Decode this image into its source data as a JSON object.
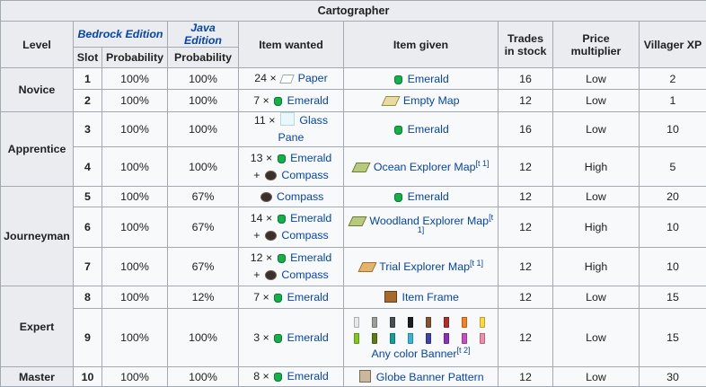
{
  "title": "Cartographer",
  "headers": {
    "level": "Level",
    "bedrock": "Bedrock Edition",
    "java": "Java Edition",
    "slot": "Slot",
    "probability_bedrock": "Probability",
    "probability_java": "Probability",
    "item_wanted": "Item wanted",
    "item_given": "Item given",
    "trades_in_stock": "Trades in stock",
    "price_multiplier": "Price multiplier",
    "villager_xp": "Villager XP"
  },
  "levels": {
    "novice": "Novice",
    "apprentice": "Apprentice",
    "journeyman": "Journeyman",
    "expert": "Expert",
    "master": "Master"
  },
  "rows": [
    {
      "slot": "1",
      "pb": "100%",
      "pj": "100%",
      "wanted": [
        {
          "qty": "24 ×",
          "icon": "paper-icon",
          "item": "Paper"
        }
      ],
      "given": {
        "icon": "emerald-icon",
        "item": "Emerald",
        "note": ""
      },
      "stock": "16",
      "mult": "Low",
      "xp": "2"
    },
    {
      "slot": "2",
      "pb": "100%",
      "pj": "100%",
      "wanted": [
        {
          "qty": "7 ×",
          "icon": "emerald-icon",
          "item": "Emerald"
        }
      ],
      "given": {
        "icon": "empty-map-icon",
        "item": "Empty Map",
        "note": ""
      },
      "stock": "12",
      "mult": "Low",
      "xp": "1"
    },
    {
      "slot": "3",
      "pb": "100%",
      "pj": "100%",
      "wanted": [
        {
          "qty": "11 ×",
          "icon": "glass-pane-icon",
          "item": "Glass Pane"
        }
      ],
      "given": {
        "icon": "emerald-icon",
        "item": "Emerald",
        "note": ""
      },
      "stock": "16",
      "mult": "Low",
      "xp": "10"
    },
    {
      "slot": "4",
      "pb": "100%",
      "pj": "100%",
      "wanted": [
        {
          "qty": "13 ×",
          "icon": "emerald-icon",
          "item": "Emerald"
        },
        {
          "qty": "+",
          "icon": "compass-icon",
          "item": "Compass"
        }
      ],
      "given": {
        "icon": "ocean-map-icon",
        "item": "Ocean Explorer Map",
        "note": "[t 1]"
      },
      "stock": "12",
      "mult": "High",
      "xp": "5"
    },
    {
      "slot": "5",
      "pb": "100%",
      "pj": "67%",
      "wanted": [
        {
          "qty": "",
          "icon": "compass-icon",
          "item": "Compass"
        }
      ],
      "given": {
        "icon": "emerald-icon",
        "item": "Emerald",
        "note": ""
      },
      "stock": "12",
      "mult": "Low",
      "xp": "20"
    },
    {
      "slot": "6",
      "pb": "100%",
      "pj": "67%",
      "wanted": [
        {
          "qty": "14 ×",
          "icon": "emerald-icon",
          "item": "Emerald"
        },
        {
          "qty": "+",
          "icon": "compass-icon",
          "item": "Compass"
        }
      ],
      "given": {
        "icon": "woodland-map-icon",
        "item": "Woodland Explorer Map",
        "note": "[t 1]"
      },
      "stock": "12",
      "mult": "High",
      "xp": "10"
    },
    {
      "slot": "7",
      "pb": "100%",
      "pj": "67%",
      "wanted": [
        {
          "qty": "12 ×",
          "icon": "emerald-icon",
          "item": "Emerald"
        },
        {
          "qty": "+",
          "icon": "compass-icon",
          "item": "Compass"
        }
      ],
      "given": {
        "icon": "trial-map-icon",
        "item": "Trial Explorer Map",
        "note": "[t 1]"
      },
      "stock": "12",
      "mult": "High",
      "xp": "10"
    },
    {
      "slot": "8",
      "pb": "100%",
      "pj": "12%",
      "wanted": [
        {
          "qty": "7 ×",
          "icon": "emerald-icon",
          "item": "Emerald"
        }
      ],
      "given": {
        "icon": "item-frame-icon",
        "item": "Item Frame",
        "note": ""
      },
      "stock": "12",
      "mult": "Low",
      "xp": "15"
    },
    {
      "slot": "9",
      "pb": "100%",
      "pj": "100%",
      "wanted": [
        {
          "qty": "3 ×",
          "icon": "emerald-icon",
          "item": "Emerald"
        }
      ],
      "given": {
        "icon": "banner-icon",
        "item": "Any color Banner",
        "note": "[t 2]"
      },
      "stock": "12",
      "mult": "Low",
      "xp": "15"
    },
    {
      "slot": "10",
      "pb": "100%",
      "pj": "100%",
      "wanted": [
        {
          "qty": "8 ×",
          "icon": "emerald-icon",
          "item": "Emerald"
        }
      ],
      "given": {
        "icon": "globe-banner-pattern-icon",
        "item": "Globe Banner Pattern",
        "note": ""
      },
      "stock": "12",
      "mult": "Low",
      "xp": "30"
    }
  ],
  "banner_colors": [
    "#e8e8e8",
    "#9d9d97",
    "#474f52",
    "#1d1d21",
    "#835432",
    "#b02e26",
    "#f9801d",
    "#fed83d",
    "#80c71f",
    "#5e7c16",
    "#169c9c",
    "#3ab3da",
    "#3c44aa",
    "#8932b8",
    "#c74ebd",
    "#f38baa"
  ]
}
